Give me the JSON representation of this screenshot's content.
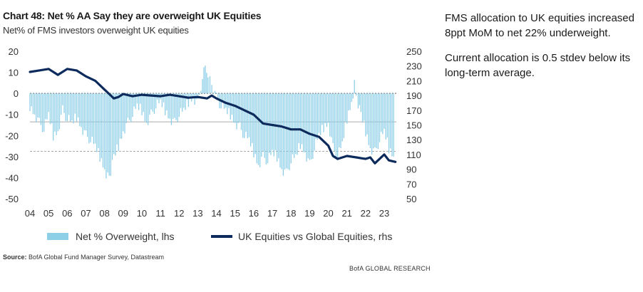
{
  "title": "Chart 48: Net % AA Say they are overweight UK Equities",
  "subtitle": "Net% of FMS investors overweight UK equities",
  "notes": {
    "line1": "FMS allocation to UK equities increased 8ppt MoM to net 22% underweight.",
    "line2": "Current allocation is 0.5 stdev below its long-term average."
  },
  "source_label": "Source:",
  "source_text": "BofA Global Fund Manager Survey, Datastream",
  "brand": "BofA GLOBAL RESEARCH",
  "colors": {
    "bars": "#8ecfe8",
    "line": "#0c2a5c",
    "ref_lines": "#aaaaaa",
    "zero_line": "#555555"
  },
  "chart_data": {
    "type": "bar+line",
    "x_tick_labels": [
      "04",
      "05",
      "06",
      "07",
      "08",
      "09",
      "10",
      "11",
      "12",
      "13",
      "14",
      "15",
      "16",
      "17",
      "18",
      "19",
      "20",
      "21",
      "22",
      "23"
    ],
    "y_left": {
      "ticks": [
        "20",
        "10",
        "0",
        "-10",
        "-20",
        "-30",
        "-40",
        "-50"
      ],
      "lim": [
        -50,
        20
      ]
    },
    "y_right": {
      "ticks": [
        "250",
        "230",
        "210",
        "190",
        "170",
        "150",
        "130",
        "110",
        "90",
        "70",
        "50"
      ],
      "lim": [
        50,
        250
      ]
    },
    "reference_lines_lhs": [
      -13.5,
      -27.5
    ],
    "series": [
      {
        "name": "Net % Overweight, lhs",
        "type": "bar",
        "axis": "left",
        "points": [
          [
            2004.0,
            -6
          ],
          [
            2004.25,
            -10
          ],
          [
            2004.5,
            -14
          ],
          [
            2004.75,
            -17
          ],
          [
            2005.0,
            -10
          ],
          [
            2005.25,
            -20
          ],
          [
            2005.5,
            -18
          ],
          [
            2005.75,
            -8
          ],
          [
            2006.0,
            -12
          ],
          [
            2006.25,
            -14
          ],
          [
            2006.5,
            -11
          ],
          [
            2006.75,
            -16
          ],
          [
            2007.0,
            -20
          ],
          [
            2007.25,
            -22
          ],
          [
            2007.5,
            -25
          ],
          [
            2007.75,
            -30
          ],
          [
            2008.0,
            -36
          ],
          [
            2008.17,
            -40
          ],
          [
            2008.33,
            -38
          ],
          [
            2008.5,
            -30
          ],
          [
            2008.75,
            -25
          ],
          [
            2009.0,
            -18
          ],
          [
            2009.25,
            -14
          ],
          [
            2009.5,
            -10
          ],
          [
            2009.75,
            -6
          ],
          [
            2010.0,
            -8
          ],
          [
            2010.25,
            -14
          ],
          [
            2010.5,
            -10
          ],
          [
            2010.75,
            -6
          ],
          [
            2011.0,
            -4
          ],
          [
            2011.25,
            -8
          ],
          [
            2011.5,
            -12
          ],
          [
            2011.75,
            -14
          ],
          [
            2012.0,
            -10
          ],
          [
            2012.25,
            -8
          ],
          [
            2012.5,
            -4
          ],
          [
            2012.75,
            -2
          ],
          [
            2013.0,
            -5
          ],
          [
            2013.25,
            8
          ],
          [
            2013.4,
            12
          ],
          [
            2013.55,
            10
          ],
          [
            2013.75,
            4
          ],
          [
            2014.0,
            -2
          ],
          [
            2014.25,
            -6
          ],
          [
            2014.5,
            -8
          ],
          [
            2014.75,
            -10
          ],
          [
            2015.0,
            -14
          ],
          [
            2015.25,
            -16
          ],
          [
            2015.5,
            -20
          ],
          [
            2015.75,
            -22
          ],
          [
            2016.0,
            -28
          ],
          [
            2016.25,
            -34
          ],
          [
            2016.5,
            -30
          ],
          [
            2016.75,
            -32
          ],
          [
            2017.0,
            -28
          ],
          [
            2017.25,
            -30
          ],
          [
            2017.5,
            -36
          ],
          [
            2017.75,
            -38
          ],
          [
            2018.0,
            -32
          ],
          [
            2018.25,
            -30
          ],
          [
            2018.5,
            -24
          ],
          [
            2018.75,
            -28
          ],
          [
            2019.0,
            -34
          ],
          [
            2019.25,
            -26
          ],
          [
            2019.5,
            -20
          ],
          [
            2019.75,
            -16
          ],
          [
            2020.0,
            -14
          ],
          [
            2020.25,
            -26
          ],
          [
            2020.5,
            -30
          ],
          [
            2020.75,
            -24
          ],
          [
            2021.0,
            -12
          ],
          [
            2021.25,
            -4
          ],
          [
            2021.4,
            4
          ],
          [
            2021.6,
            -6
          ],
          [
            2021.75,
            -10
          ],
          [
            2022.0,
            -18
          ],
          [
            2022.25,
            -26
          ],
          [
            2022.5,
            -28
          ],
          [
            2022.75,
            -22
          ],
          [
            2023.0,
            -18
          ],
          [
            2023.25,
            -26
          ],
          [
            2023.5,
            -30
          ],
          [
            2023.6,
            -22
          ]
        ]
      },
      {
        "name": "UK Equities vs Global Equities, rhs",
        "type": "line",
        "axis": "right",
        "points": [
          [
            2004.0,
            222
          ],
          [
            2004.5,
            224
          ],
          [
            2005.0,
            226
          ],
          [
            2005.5,
            218
          ],
          [
            2006.0,
            226
          ],
          [
            2006.5,
            224
          ],
          [
            2007.0,
            216
          ],
          [
            2007.5,
            210
          ],
          [
            2008.0,
            198
          ],
          [
            2008.25,
            192
          ],
          [
            2008.5,
            186
          ],
          [
            2008.75,
            188
          ],
          [
            2009.0,
            192
          ],
          [
            2009.5,
            189
          ],
          [
            2010.0,
            191
          ],
          [
            2010.5,
            190
          ],
          [
            2011.0,
            189
          ],
          [
            2011.5,
            191
          ],
          [
            2012.0,
            189
          ],
          [
            2012.5,
            187
          ],
          [
            2013.0,
            188
          ],
          [
            2013.5,
            186
          ],
          [
            2013.75,
            190
          ],
          [
            2014.0,
            186
          ],
          [
            2014.5,
            180
          ],
          [
            2015.0,
            176
          ],
          [
            2015.5,
            170
          ],
          [
            2016.0,
            164
          ],
          [
            2016.5,
            152
          ],
          [
            2017.0,
            150
          ],
          [
            2017.5,
            148
          ],
          [
            2018.0,
            144
          ],
          [
            2018.5,
            144
          ],
          [
            2019.0,
            138
          ],
          [
            2019.5,
            134
          ],
          [
            2019.75,
            128
          ],
          [
            2020.0,
            122
          ],
          [
            2020.25,
            108
          ],
          [
            2020.5,
            104
          ],
          [
            2021.0,
            108
          ],
          [
            2021.5,
            106
          ],
          [
            2022.0,
            104
          ],
          [
            2022.25,
            106
          ],
          [
            2022.5,
            98
          ],
          [
            2022.75,
            104
          ],
          [
            2023.0,
            110
          ],
          [
            2023.25,
            102
          ],
          [
            2023.6,
            100
          ]
        ]
      }
    ]
  }
}
